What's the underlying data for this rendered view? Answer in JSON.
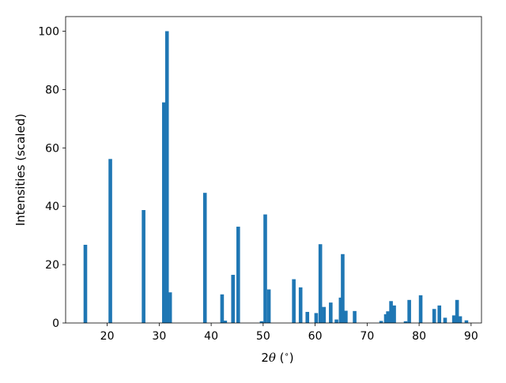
{
  "chart_data": {
    "type": "bar",
    "title": "",
    "xlabel": "2θ (°)",
    "xlabel_parts": {
      "prefix": "2",
      "symbol": "θ",
      "unit_open": " (",
      "unit_degree": "∘",
      "unit_close": ")"
    },
    "ylabel": "Intensities (scaled)",
    "xlim": [
      12,
      92
    ],
    "ylim": [
      0,
      105
    ],
    "xticks": [
      20,
      30,
      40,
      50,
      60,
      70,
      80,
      90
    ],
    "yticks": [
      0,
      20,
      40,
      60,
      80,
      100
    ],
    "grid": false,
    "legend": "none",
    "bar_color": "#1f77b4",
    "bar_width": 0.7,
    "x": [
      15.8,
      20.6,
      27.0,
      30.9,
      31.5,
      32.1,
      38.8,
      42.1,
      42.7,
      44.2,
      45.2,
      49.7,
      50.4,
      51.1,
      55.9,
      57.2,
      58.5,
      60.2,
      61.0,
      61.7,
      63.0,
      64.1,
      64.9,
      65.3,
      65.9,
      67.6,
      72.7,
      73.6,
      74.0,
      74.6,
      75.2,
      77.4,
      78.1,
      80.3,
      82.9,
      83.9,
      85.0,
      86.7,
      87.3,
      87.9,
      89.1
    ],
    "values": [
      26.8,
      56.2,
      38.7,
      75.6,
      100.0,
      10.5,
      44.6,
      9.8,
      0.8,
      16.5,
      33.0,
      0.6,
      37.2,
      11.5,
      15.0,
      12.2,
      3.8,
      3.4,
      27.0,
      5.5,
      7.0,
      1.2,
      8.7,
      23.6,
      4.2,
      4.1,
      0.7,
      3.0,
      4.0,
      7.5,
      6.0,
      0.6,
      7.9,
      9.5,
      4.8,
      6.0,
      1.8,
      2.6,
      7.9,
      2.3,
      0.9
    ]
  }
}
